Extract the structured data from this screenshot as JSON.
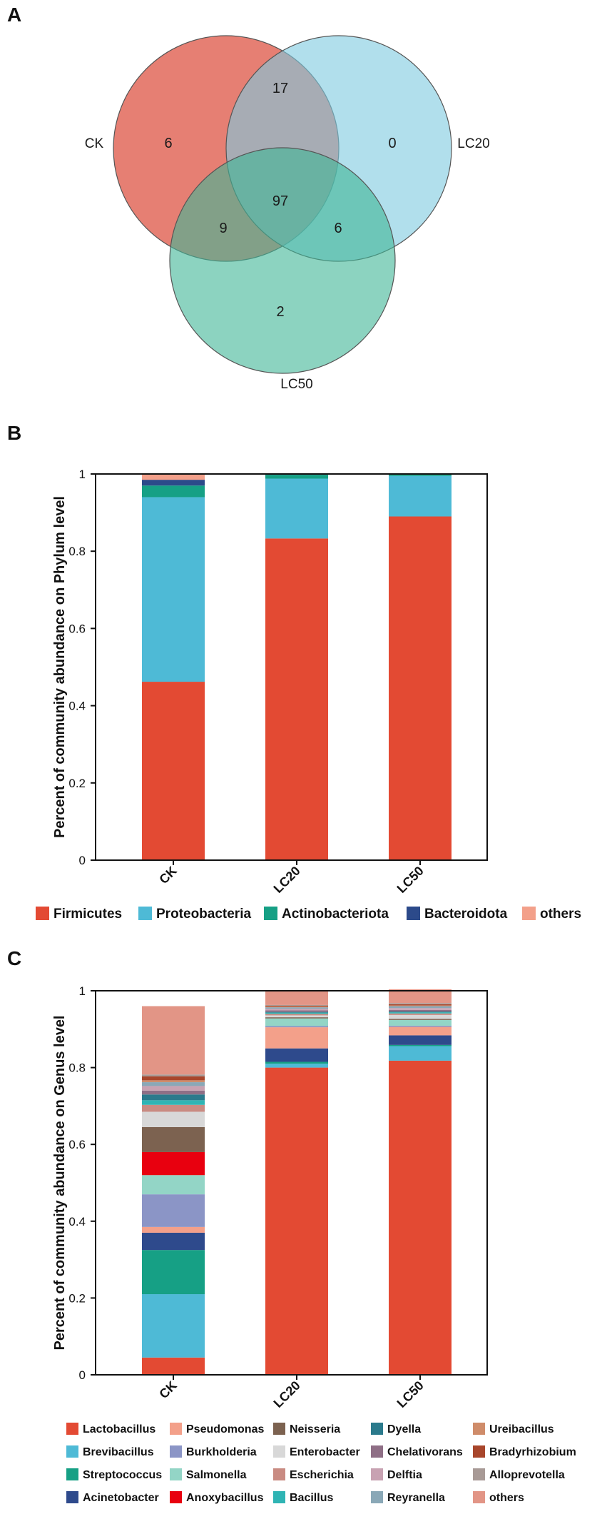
{
  "panels": {
    "a": {
      "label": "A"
    },
    "b": {
      "label": "B"
    },
    "c": {
      "label": "C"
    }
  },
  "venn": {
    "sets": [
      {
        "name": "CK",
        "color": "#e2685a"
      },
      {
        "name": "LC20",
        "color": "#7dcae0"
      },
      {
        "name": "LC50",
        "color": "#3fb596"
      }
    ],
    "regions": {
      "ck_only": "6",
      "lc20_only": "0",
      "lc50_only": "2",
      "ck_lc20": "17",
      "ck_lc50": "9",
      "lc20_lc50": "6",
      "all": "97"
    }
  },
  "chart_data": [
    {
      "type": "bar",
      "stacked": true,
      "title": "",
      "xlabel": "",
      "ylabel": "Percent of community abundance on Phylum level",
      "ylim": [
        0,
        1
      ],
      "yticks": [
        "0",
        "0.2",
        "0.4",
        "0.6",
        "0.8",
        "1"
      ],
      "categories": [
        "CK",
        "LC20",
        "LC50"
      ],
      "legend_position": "bottom",
      "series": [
        {
          "name": "Firmicutes",
          "color": "#e34a33",
          "values": [
            0.462,
            0.833,
            0.89
          ]
        },
        {
          "name": "Proteobacteria",
          "color": "#4ebad6",
          "values": [
            0.478,
            0.155,
            0.105
          ]
        },
        {
          "name": "Actinobacteriota",
          "color": "#16a085",
          "values": [
            0.03,
            0.01,
            0.004
          ]
        },
        {
          "name": "Bacteroidota",
          "color": "#2c4a8a",
          "values": [
            0.015,
            0.001,
            0.0
          ]
        },
        {
          "name": "others",
          "color": "#f3a08a",
          "values": [
            0.015,
            0.001,
            0.001
          ]
        }
      ]
    },
    {
      "type": "bar",
      "stacked": true,
      "title": "",
      "xlabel": "",
      "ylabel": "Percent of community abundance on Genus level",
      "ylim": [
        0,
        1
      ],
      "yticks": [
        "0",
        "0.2",
        "0.4",
        "0.6",
        "0.8",
        "1"
      ],
      "categories": [
        "CK",
        "LC20",
        "LC50"
      ],
      "legend_position": "bottom",
      "series": [
        {
          "name": "Lactobacillus",
          "color": "#e34a33",
          "values": [
            0.045,
            0.8,
            0.818
          ]
        },
        {
          "name": "Brevibacillus",
          "color": "#4ebad6",
          "values": [
            0.165,
            0.01,
            0.038
          ]
        },
        {
          "name": "Streptococcus",
          "color": "#16a085",
          "values": [
            0.115,
            0.005,
            0.003
          ]
        },
        {
          "name": "Acinetobacter",
          "color": "#2e4a8c",
          "values": [
            0.045,
            0.035,
            0.025
          ]
        },
        {
          "name": "Pseudomonas",
          "color": "#f3a08a",
          "values": [
            0.015,
            0.055,
            0.022
          ]
        },
        {
          "name": "Burkholderia",
          "color": "#8b95c6",
          "values": [
            0.085,
            0.003,
            0.003
          ]
        },
        {
          "name": "Salmonella",
          "color": "#93d5c6",
          "values": [
            0.05,
            0.02,
            0.015
          ]
        },
        {
          "name": "Anoxybacillus",
          "color": "#e8000f",
          "values": [
            0.06,
            0.0,
            0.0
          ]
        },
        {
          "name": "Neisseria",
          "color": "#7c6250",
          "values": [
            0.065,
            0.003,
            0.003
          ]
        },
        {
          "name": "Enterobacter",
          "color": "#d8d8d8",
          "values": [
            0.04,
            0.005,
            0.01
          ]
        },
        {
          "name": "Escherichia",
          "color": "#c98b82",
          "values": [
            0.018,
            0.004,
            0.004
          ]
        },
        {
          "name": "Bacillus",
          "color": "#2fb4b4",
          "values": [
            0.012,
            0.003,
            0.003
          ]
        },
        {
          "name": "Dyella",
          "color": "#2b7a8c",
          "values": [
            0.015,
            0.002,
            0.002
          ]
        },
        {
          "name": "Chelativorans",
          "color": "#8f6f86",
          "values": [
            0.01,
            0.004,
            0.004
          ]
        },
        {
          "name": "Delftia",
          "color": "#c8a2b2",
          "values": [
            0.012,
            0.004,
            0.005
          ]
        },
        {
          "name": "Reyranella",
          "color": "#8aa8b7",
          "values": [
            0.01,
            0.004,
            0.005
          ]
        },
        {
          "name": "Ureibacillus",
          "color": "#cf8c6a",
          "values": [
            0.005,
            0.002,
            0.002
          ]
        },
        {
          "name": "Bradyrhizobium",
          "color": "#a8462c",
          "values": [
            0.01,
            0.002,
            0.003
          ]
        },
        {
          "name": "Alloprevotella",
          "color": "#a89a96",
          "values": [
            0.005,
            0.002,
            0.003
          ]
        },
        {
          "name": "others",
          "color": "#e29586",
          "values": [
            0.178,
            0.036,
            0.036
          ]
        }
      ]
    }
  ]
}
